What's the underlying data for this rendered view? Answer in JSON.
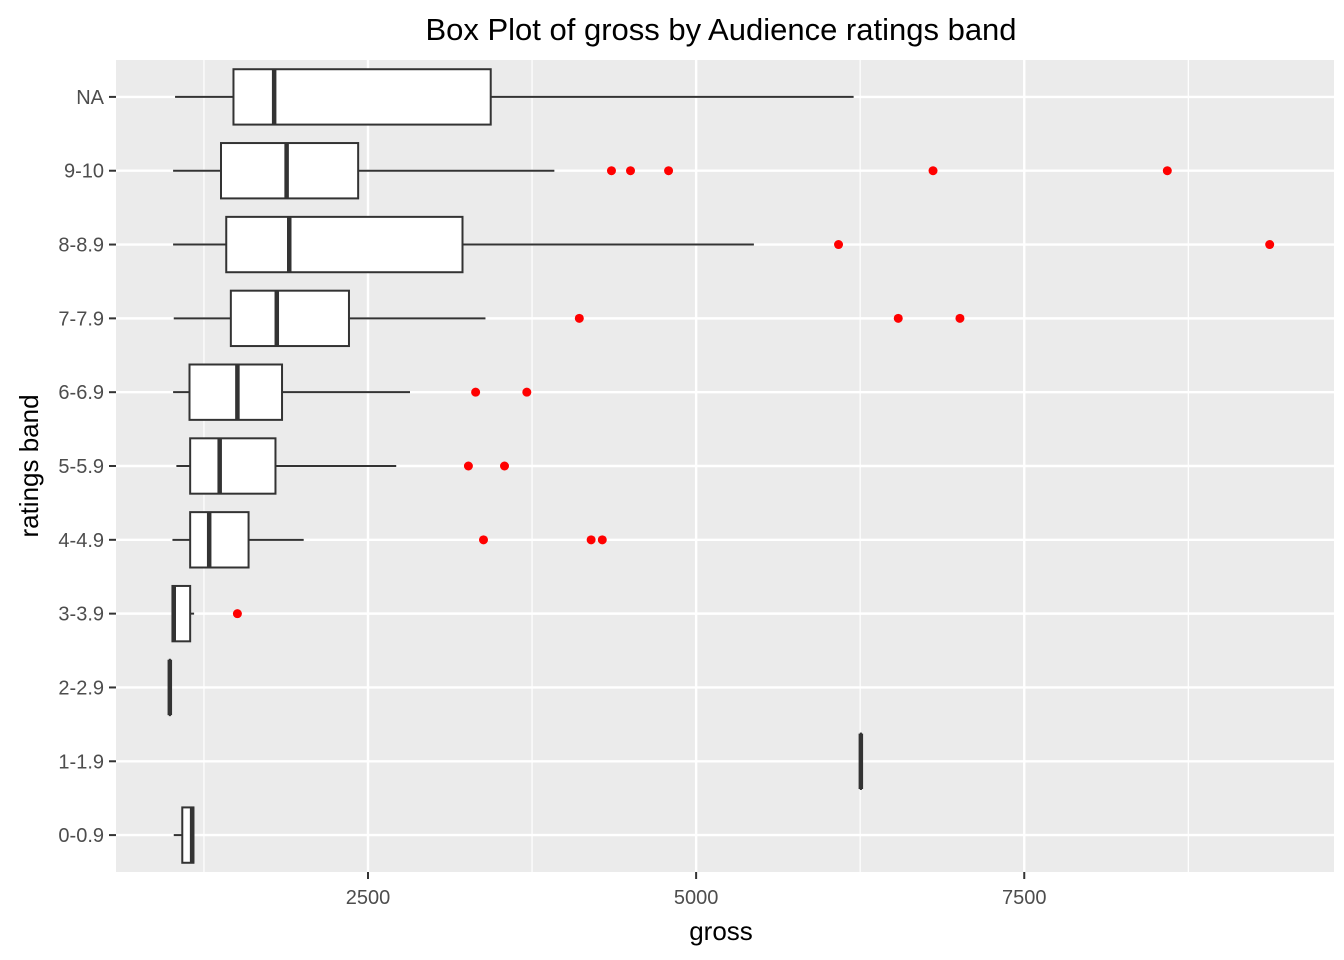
{
  "chart_data": {
    "type": "box",
    "title": "Box Plot of gross by Audience ratings band",
    "xlabel": "gross",
    "ylabel": "ratings band",
    "xlim": [
      580,
      9860
    ],
    "x_ticks": [
      2500,
      5000,
      7500
    ],
    "x_tick_labels": [
      "2500",
      "5000",
      "7500"
    ],
    "grid": true,
    "categories": [
      "0-0.9",
      "1-1.9",
      "2-2.9",
      "3-3.9",
      "4-4.9",
      "5-5.9",
      "6-6.9",
      "7-7.9",
      "8-8.9",
      "9-10",
      "NA"
    ],
    "boxes": [
      {
        "category": "0-0.9",
        "min": 1020,
        "q1": 1085,
        "median": 1160,
        "q3": 1170,
        "max": 1170,
        "outliers": []
      },
      {
        "category": "1-1.9",
        "min": 6255,
        "q1": 6255,
        "median": 6255,
        "q3": 6255,
        "max": 6255,
        "outliers": []
      },
      {
        "category": "2-2.9",
        "min": 990,
        "q1": 990,
        "median": 990,
        "q3": 990,
        "max": 990,
        "outliers": []
      },
      {
        "category": "3-3.9",
        "min": 1010,
        "q1": 1010,
        "median": 1020,
        "q3": 1145,
        "max": 1175,
        "outliers": [
          1505
        ]
      },
      {
        "category": "4-4.9",
        "min": 1010,
        "q1": 1145,
        "median": 1290,
        "q3": 1590,
        "max": 2010,
        "outliers": [
          3380,
          4200,
          4285
        ]
      },
      {
        "category": "5-5.9",
        "min": 1040,
        "q1": 1145,
        "median": 1370,
        "q3": 1795,
        "max": 2715,
        "outliers": [
          3265,
          3540
        ]
      },
      {
        "category": "6-6.9",
        "min": 1015,
        "q1": 1140,
        "median": 1505,
        "q3": 1845,
        "max": 2820,
        "outliers": [
          3320,
          3710
        ]
      },
      {
        "category": "7-7.9",
        "min": 1020,
        "q1": 1455,
        "median": 1805,
        "q3": 2355,
        "max": 3395,
        "outliers": [
          4110,
          6540,
          7010
        ]
      },
      {
        "category": "8-8.9",
        "min": 1015,
        "q1": 1420,
        "median": 1900,
        "q3": 3220,
        "max": 5440,
        "outliers": [
          6085,
          9370
        ]
      },
      {
        "category": "9-10",
        "min": 1015,
        "q1": 1380,
        "median": 1880,
        "q3": 2425,
        "max": 3920,
        "outliers": [
          4355,
          4500,
          4790,
          6805,
          8590
        ]
      },
      {
        "category": "NA",
        "min": 1030,
        "q1": 1475,
        "median": 1785,
        "q3": 3435,
        "max": 6200,
        "outliers": []
      }
    ],
    "colors": {
      "panel": "#ebebeb",
      "grid_major": "#ffffff",
      "box_fill": "#ffffff",
      "box_stroke": "#333333",
      "outlier": "#ff0000",
      "tick": "#333333"
    }
  }
}
